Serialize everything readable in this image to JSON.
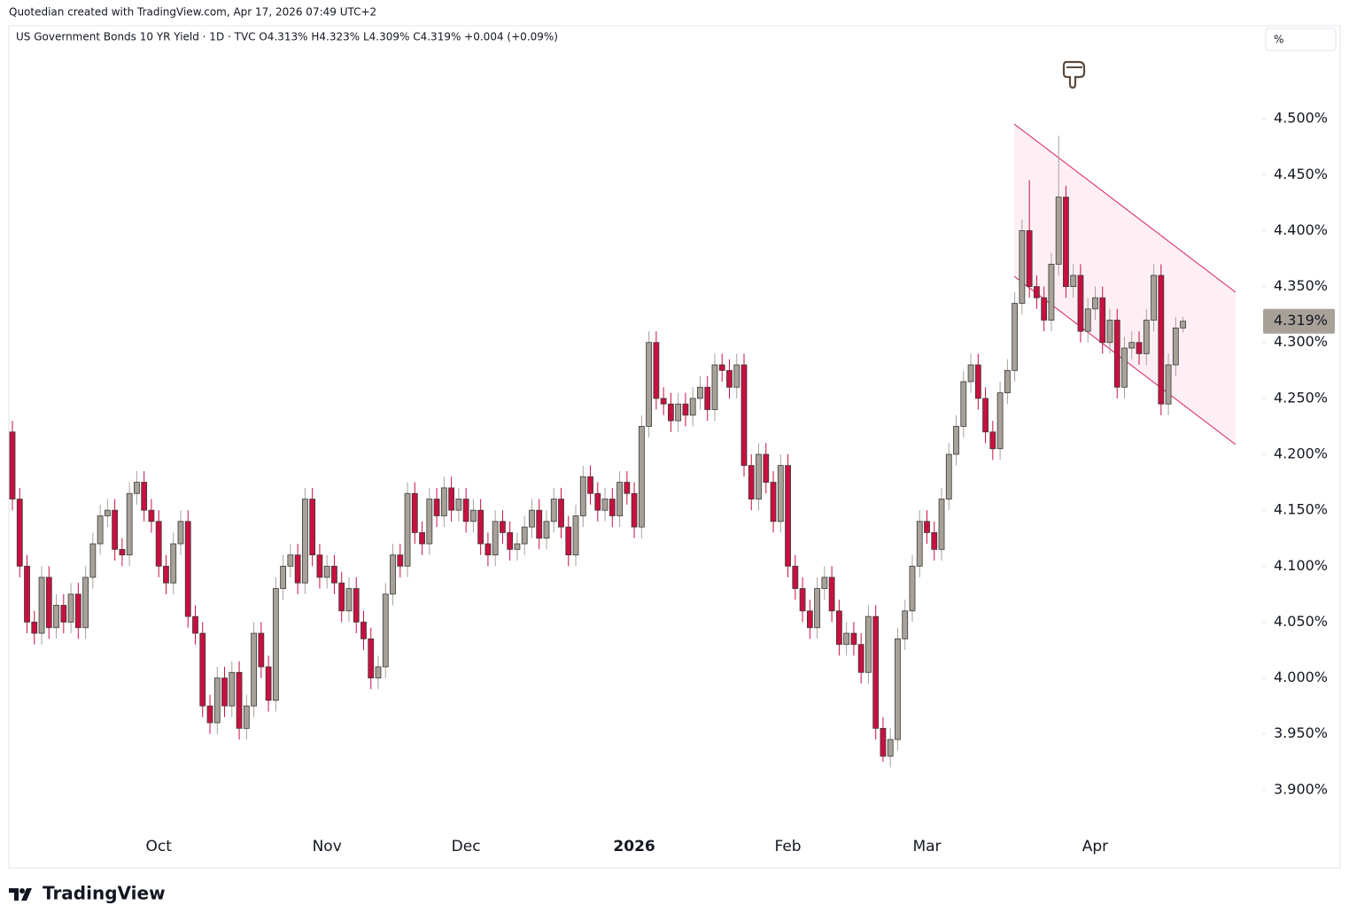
{
  "chart_data": {
    "type": "candlestick",
    "caption": "Quotedian created with TradingView.com, Apr 17, 2026 07:49 UTC+2",
    "title": "US Government Bonds 10 YR Yield · 1D · TVC  O4.313%  H4.323%  L4.309%  C4.319%  +0.004 (+0.09%)",
    "unit": "%",
    "brand": "TradingView",
    "up_color": "#a8a198",
    "down_color": "#c8103f",
    "grid": false,
    "categories": [
      null,
      null,
      null,
      null,
      null,
      null,
      null,
      null,
      null,
      null,
      null,
      null,
      null,
      null,
      null,
      null,
      null,
      null,
      null,
      null,
      "Oct",
      null,
      null,
      null,
      null,
      null,
      null,
      null,
      null,
      null,
      null,
      null,
      null,
      null,
      null,
      null,
      null,
      null,
      null,
      null,
      null,
      null,
      null,
      "Nov",
      null,
      null,
      null,
      null,
      null,
      null,
      null,
      null,
      null,
      null,
      null,
      null,
      null,
      null,
      null,
      null,
      null,
      null,
      "Dec",
      null,
      null,
      null,
      null,
      null,
      null,
      null,
      null,
      null,
      null,
      null,
      null,
      null,
      null,
      null,
      null,
      null,
      null,
      null,
      null,
      null,
      null,
      "2026",
      null,
      null,
      null,
      null,
      null,
      null,
      null,
      null,
      null,
      null,
      null,
      null,
      null,
      null,
      null,
      null,
      null,
      null,
      null,
      null,
      "Feb",
      null,
      null,
      null,
      null,
      null,
      null,
      null,
      null,
      null,
      null,
      null,
      null,
      null,
      null,
      null,
      null,
      null,
      null,
      "Mar",
      null,
      null,
      null,
      null,
      null,
      null,
      null,
      null,
      null,
      null,
      null,
      null,
      null,
      null,
      null,
      null,
      null,
      null,
      null,
      null,
      null,
      null,
      "Apr",
      null,
      null,
      null,
      null,
      null,
      null,
      null,
      null,
      null,
      null,
      null,
      null
    ],
    "open": [
      4.22,
      4.16,
      4.1,
      4.05,
      4.04,
      4.09,
      4.045,
      4.065,
      4.05,
      4.075,
      4.045,
      4.09,
      4.12,
      4.145,
      4.15,
      4.115,
      4.11,
      4.165,
      4.175,
      4.15,
      4.14,
      4.1,
      4.085,
      4.12,
      4.14,
      4.055,
      4.04,
      3.975,
      3.96,
      4.0,
      3.975,
      4.005,
      3.955,
      3.975,
      4.04,
      4.01,
      3.98,
      4.08,
      4.1,
      4.11,
      4.085,
      4.16,
      4.11,
      4.09,
      4.1,
      4.085,
      4.06,
      4.08,
      4.05,
      4.035,
      4.0,
      4.01,
      4.075,
      4.11,
      4.1,
      4.165,
      4.13,
      4.12,
      4.16,
      4.145,
      4.17,
      4.15,
      4.16,
      4.14,
      4.15,
      4.12,
      4.11,
      4.14,
      4.13,
      4.115,
      4.12,
      4.135,
      4.15,
      4.125,
      4.14,
      4.16,
      4.135,
      4.11,
      4.145,
      4.18,
      4.165,
      4.15,
      4.16,
      4.145,
      4.175,
      4.165,
      4.135,
      4.225,
      4.3,
      4.25,
      4.245,
      4.23,
      4.245,
      4.235,
      4.25,
      4.26,
      4.24,
      4.28,
      4.275,
      4.26,
      4.28,
      4.19,
      4.16,
      4.2,
      4.175,
      4.14,
      4.19,
      4.1,
      4.08,
      4.06,
      4.045,
      4.08,
      4.09,
      4.06,
      4.03,
      4.04,
      4.03,
      4.005,
      4.055,
      3.955,
      3.93,
      3.945,
      4.035,
      4.06,
      4.1,
      4.14,
      4.13,
      4.115,
      4.16,
      4.2,
      4.225,
      4.265,
      4.28,
      4.25,
      4.22,
      4.205,
      4.255,
      4.275,
      4.335,
      4.4,
      4.35,
      4.34,
      4.32,
      4.37,
      4.43,
      4.35,
      4.36,
      4.31,
      4.33,
      4.34,
      4.3,
      4.32,
      4.26,
      4.295,
      4.3,
      4.29,
      4.32,
      4.36,
      4.245,
      4.28,
      4.313
    ],
    "high": [
      4.23,
      4.17,
      4.11,
      4.06,
      4.1,
      4.1,
      4.075,
      4.075,
      4.085,
      4.085,
      4.1,
      4.13,
      4.155,
      4.16,
      4.16,
      4.125,
      4.175,
      4.185,
      4.185,
      4.16,
      4.15,
      4.11,
      4.13,
      4.15,
      4.15,
      4.065,
      4.05,
      3.985,
      4.01,
      4.01,
      4.015,
      4.015,
      3.985,
      4.05,
      4.05,
      4.02,
      4.09,
      4.11,
      4.12,
      4.12,
      4.17,
      4.17,
      4.12,
      4.11,
      4.11,
      4.095,
      4.09,
      4.09,
      4.06,
      4.045,
      4.02,
      4.085,
      4.12,
      4.12,
      4.175,
      4.175,
      4.14,
      4.17,
      4.17,
      4.18,
      4.18,
      4.17,
      4.17,
      4.16,
      4.16,
      4.13,
      4.15,
      4.15,
      4.14,
      4.13,
      4.145,
      4.16,
      4.16,
      4.15,
      4.17,
      4.17,
      4.145,
      4.155,
      4.19,
      4.19,
      4.175,
      4.17,
      4.17,
      4.185,
      4.185,
      4.175,
      4.235,
      4.31,
      4.31,
      4.26,
      4.255,
      4.255,
      4.255,
      4.26,
      4.27,
      4.27,
      4.29,
      4.29,
      4.285,
      4.29,
      4.29,
      4.2,
      4.21,
      4.21,
      4.185,
      4.2,
      4.2,
      4.11,
      4.09,
      4.07,
      4.09,
      4.1,
      4.1,
      4.07,
      4.05,
      4.05,
      4.04,
      4.065,
      4.065,
      3.965,
      3.955,
      4.045,
      4.07,
      4.11,
      4.15,
      4.15,
      4.14,
      4.17,
      4.21,
      4.235,
      4.275,
      4.29,
      4.29,
      4.26,
      4.23,
      4.265,
      4.285,
      4.345,
      4.41,
      4.445,
      4.36,
      4.35,
      4.38,
      4.485,
      4.44,
      4.37,
      4.37,
      4.34,
      4.35,
      4.35,
      4.33,
      4.33,
      4.305,
      4.31,
      4.31,
      4.33,
      4.37,
      4.37,
      4.29,
      4.323,
      4.323
    ],
    "low": [
      4.15,
      4.09,
      4.04,
      4.03,
      4.03,
      4.035,
      4.035,
      4.04,
      4.04,
      4.035,
      4.035,
      4.08,
      4.11,
      4.135,
      4.105,
      4.1,
      4.1,
      4.155,
      4.14,
      4.13,
      4.09,
      4.075,
      4.075,
      4.11,
      4.045,
      4.03,
      3.965,
      3.95,
      3.95,
      3.965,
      3.965,
      3.945,
      3.945,
      3.965,
      4.0,
      3.97,
      3.97,
      4.07,
      4.09,
      4.075,
      4.075,
      4.1,
      4.08,
      4.08,
      4.075,
      4.05,
      4.05,
      4.04,
      4.025,
      3.99,
      3.99,
      4.0,
      4.065,
      4.09,
      4.09,
      4.12,
      4.11,
      4.11,
      4.135,
      4.135,
      4.14,
      4.14,
      4.13,
      4.13,
      4.11,
      4.1,
      4.1,
      4.12,
      4.105,
      4.105,
      4.11,
      4.125,
      4.115,
      4.115,
      4.13,
      4.125,
      4.1,
      4.1,
      4.135,
      4.155,
      4.14,
      4.14,
      4.135,
      4.135,
      4.155,
      4.125,
      4.125,
      4.215,
      4.24,
      4.235,
      4.22,
      4.22,
      4.225,
      4.225,
      4.24,
      4.23,
      4.23,
      4.265,
      4.25,
      4.25,
      4.18,
      4.15,
      4.15,
      4.165,
      4.13,
      4.13,
      4.09,
      4.07,
      4.05,
      4.035,
      4.035,
      4.07,
      4.05,
      4.02,
      4.02,
      4.02,
      3.995,
      3.995,
      3.945,
      3.925,
      3.92,
      3.935,
      4.025,
      4.05,
      4.09,
      4.12,
      4.105,
      4.105,
      4.15,
      4.19,
      4.215,
      4.255,
      4.24,
      4.21,
      4.195,
      4.195,
      4.245,
      4.265,
      4.325,
      4.34,
      4.33,
      4.31,
      4.31,
      4.36,
      4.34,
      4.34,
      4.3,
      4.3,
      4.32,
      4.29,
      4.29,
      4.25,
      4.25,
      4.285,
      4.28,
      4.28,
      4.31,
      4.235,
      4.235,
      4.27,
      4.309
    ],
    "close": [
      4.16,
      4.1,
      4.05,
      4.04,
      4.09,
      4.045,
      4.065,
      4.05,
      4.075,
      4.045,
      4.09,
      4.12,
      4.145,
      4.15,
      4.115,
      4.11,
      4.165,
      4.175,
      4.15,
      4.14,
      4.1,
      4.085,
      4.12,
      4.14,
      4.055,
      4.04,
      3.975,
      3.96,
      4.0,
      3.975,
      4.005,
      3.955,
      3.975,
      4.04,
      4.01,
      3.98,
      4.08,
      4.1,
      4.11,
      4.085,
      4.16,
      4.11,
      4.09,
      4.1,
      4.085,
      4.06,
      4.08,
      4.05,
      4.035,
      4.0,
      4.01,
      4.075,
      4.11,
      4.1,
      4.165,
      4.13,
      4.12,
      4.16,
      4.145,
      4.17,
      4.15,
      4.16,
      4.14,
      4.15,
      4.12,
      4.11,
      4.14,
      4.13,
      4.115,
      4.12,
      4.135,
      4.15,
      4.125,
      4.14,
      4.16,
      4.135,
      4.11,
      4.145,
      4.18,
      4.165,
      4.15,
      4.16,
      4.145,
      4.175,
      4.165,
      4.135,
      4.225,
      4.3,
      4.25,
      4.245,
      4.23,
      4.245,
      4.235,
      4.25,
      4.26,
      4.24,
      4.28,
      4.275,
      4.26,
      4.28,
      4.19,
      4.16,
      4.2,
      4.175,
      4.14,
      4.19,
      4.1,
      4.08,
      4.06,
      4.045,
      4.08,
      4.09,
      4.06,
      4.03,
      4.04,
      4.03,
      4.005,
      4.055,
      3.955,
      3.93,
      3.945,
      4.035,
      4.06,
      4.1,
      4.14,
      4.13,
      4.115,
      4.16,
      4.2,
      4.225,
      4.265,
      4.28,
      4.25,
      4.22,
      4.205,
      4.255,
      4.275,
      4.335,
      4.4,
      4.35,
      4.34,
      4.32,
      4.37,
      4.43,
      4.35,
      4.36,
      4.31,
      4.33,
      4.34,
      4.3,
      4.32,
      4.26,
      4.295,
      4.3,
      4.29,
      4.32,
      4.36,
      4.245,
      4.28,
      4.313,
      4.319
    ],
    "last_value_label": "4.319%",
    "ylim": [
      3.831,
      4.5825
    ],
    "yticks": [
      {
        "value": 3.9,
        "label": "3.900%"
      },
      {
        "value": 3.95,
        "label": "3.950%"
      },
      {
        "value": 4.0,
        "label": "4.000%"
      },
      {
        "value": 4.05,
        "label": "4.050%"
      },
      {
        "value": 4.1,
        "label": "4.100%"
      },
      {
        "value": 4.15,
        "label": "4.150%"
      },
      {
        "value": 4.2,
        "label": "4.200%"
      },
      {
        "value": 4.25,
        "label": "4.250%"
      },
      {
        "value": 4.3,
        "label": "4.300%"
      },
      {
        "value": 4.35,
        "label": "4.350%"
      },
      {
        "value": 4.4,
        "label": "4.400%"
      },
      {
        "value": 4.45,
        "label": "4.450%"
      },
      {
        "value": 4.5,
        "label": "4.500%"
      }
    ]
  }
}
